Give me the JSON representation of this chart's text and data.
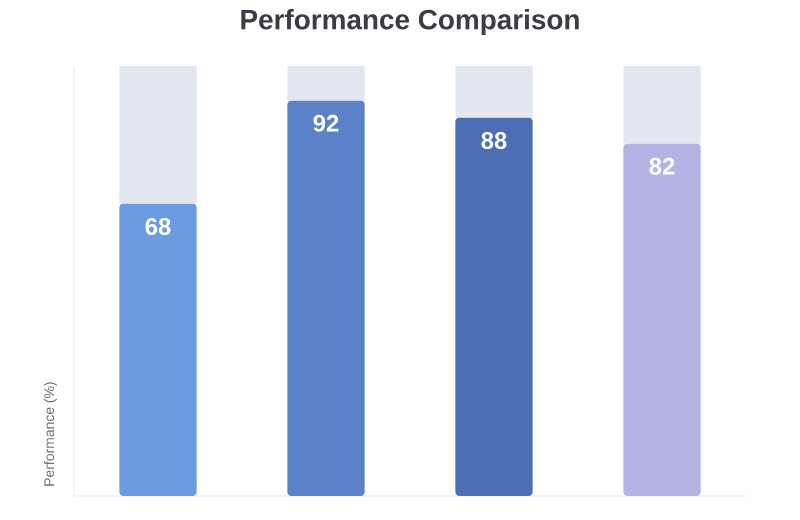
{
  "chart_data": {
    "type": "bar",
    "title": "Performance Comparison",
    "ylabel": "Performance (%)",
    "categories": [
      null,
      null,
      null,
      null
    ],
    "stacked": true,
    "ylim": [
      0,
      100
    ],
    "series": [
      {
        "color": "#6b9be0",
        "colors": [
          "#6b9be0",
          "#5b82c8",
          "#4d6db5",
          "#b3b3e6"
        ],
        "values": [
          68,
          92,
          88,
          82
        ],
        "value_labels": [
          "68",
          "92",
          "88",
          "82"
        ]
      },
      {
        "color": "#e3e7f1",
        "values": [
          32,
          8,
          12,
          18
        ]
      }
    ]
  }
}
